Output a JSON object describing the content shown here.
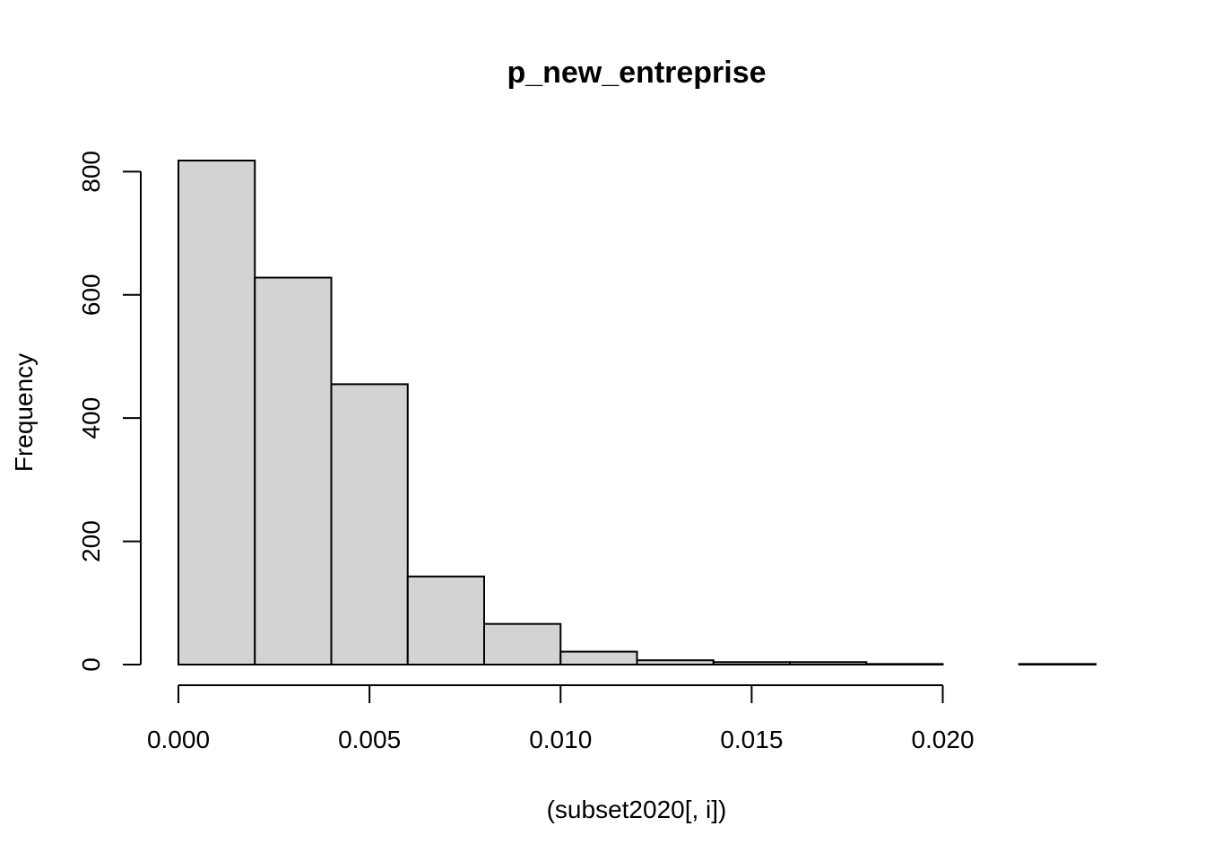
{
  "chart_data": {
    "type": "bar",
    "title": "p_new_entreprise",
    "xlabel": "(subset2020[, i])",
    "ylabel": "Frequency",
    "bins": [
      {
        "from": 0.0,
        "to": 0.002,
        "count": 818
      },
      {
        "from": 0.002,
        "to": 0.004,
        "count": 628
      },
      {
        "from": 0.004,
        "to": 0.006,
        "count": 455
      },
      {
        "from": 0.006,
        "to": 0.008,
        "count": 143
      },
      {
        "from": 0.008,
        "to": 0.01,
        "count": 66
      },
      {
        "from": 0.01,
        "to": 0.012,
        "count": 21
      },
      {
        "from": 0.012,
        "to": 0.014,
        "count": 7
      },
      {
        "from": 0.014,
        "to": 0.016,
        "count": 4
      },
      {
        "from": 0.016,
        "to": 0.018,
        "count": 4
      },
      {
        "from": 0.018,
        "to": 0.02,
        "count": 1
      },
      {
        "from": 0.02,
        "to": 0.022,
        "count": 0
      },
      {
        "from": 0.022,
        "to": 0.024,
        "count": 1
      }
    ],
    "x_ticks": [
      {
        "value": 0.0,
        "label": "0.000"
      },
      {
        "value": 0.005,
        "label": "0.005"
      },
      {
        "value": 0.01,
        "label": "0.010"
      },
      {
        "value": 0.015,
        "label": "0.015"
      },
      {
        "value": 0.02,
        "label": "0.020"
      }
    ],
    "y_ticks": [
      {
        "value": 0,
        "label": "0"
      },
      {
        "value": 200,
        "label": "200"
      },
      {
        "value": 400,
        "label": "400"
      },
      {
        "value": 600,
        "label": "600"
      },
      {
        "value": 800,
        "label": "800"
      }
    ],
    "xlim": [
      0,
      0.024
    ],
    "ylim": [
      0,
      818
    ],
    "grid": false,
    "bar_color": "#d3d3d3",
    "stroke_color": "#000000"
  }
}
